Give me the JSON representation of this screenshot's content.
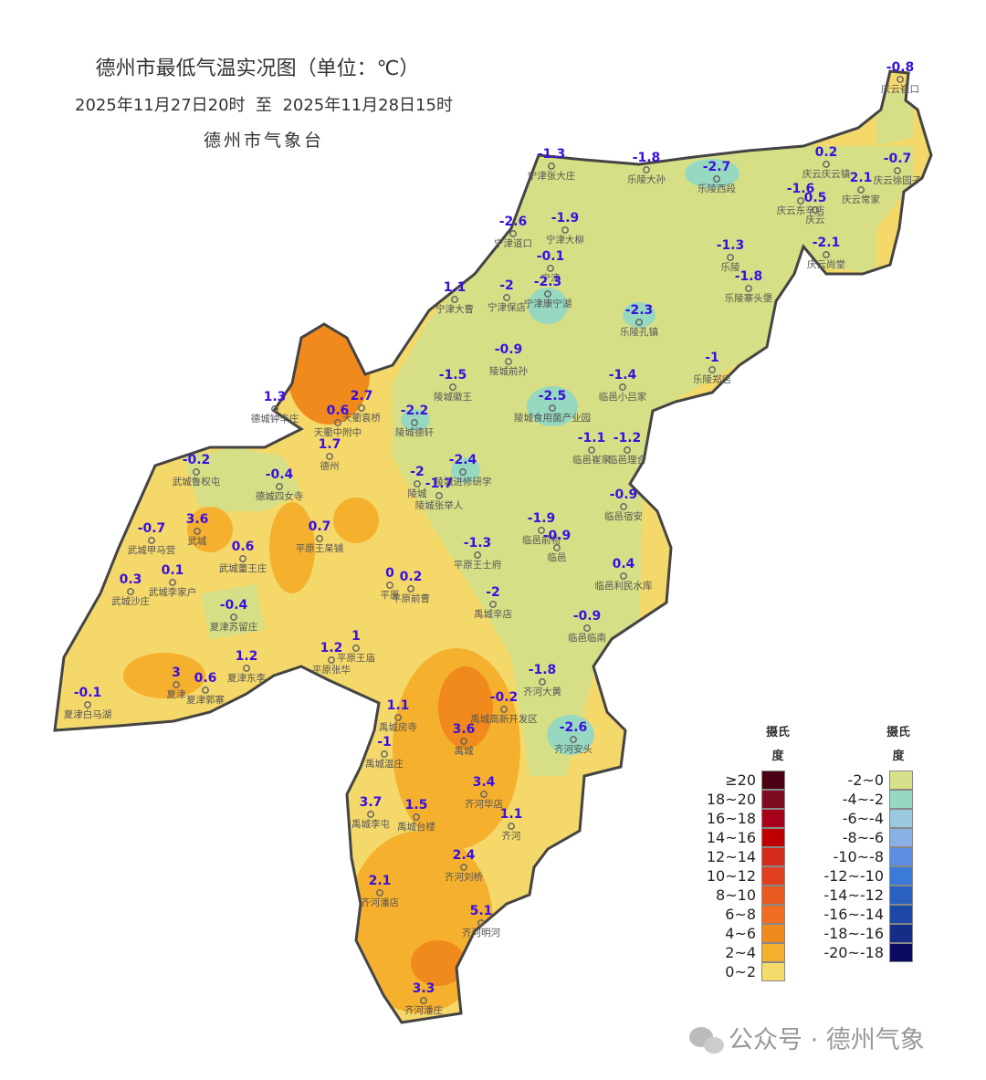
{
  "header": {
    "title": "德州市最低气温实况图（单位：℃）",
    "subtitle": "2025年11月27日20时  至  2025年11月28日15时",
    "agency": "德州市气象台"
  },
  "stations": [
    {
      "name": "庆云崔口",
      "value": -0.8
    },
    {
      "name": "宁津张大庄",
      "value": -1.3
    },
    {
      "name": "乐陵大孙",
      "value": -1.8
    },
    {
      "name": "乐陵西段",
      "value": -2.7
    },
    {
      "name": "庆云庆云镇",
      "value": 0.2
    },
    {
      "name": "庆云徐园子",
      "value": -0.7
    },
    {
      "name": "庆云常家",
      "value": 2.1
    },
    {
      "name": "庆云东辛店",
      "value": -1.6
    },
    {
      "name": "庆云",
      "value": 0.5
    },
    {
      "name": "庆云尚堂",
      "value": -2.1
    },
    {
      "name": "宁津道口",
      "value": -2.6
    },
    {
      "name": "宁津大柳",
      "value": -1.9
    },
    {
      "name": "宁津",
      "value": -0.1
    },
    {
      "name": "乐陵",
      "value": -1.3
    },
    {
      "name": "乐陵寨头堡",
      "value": -1.8
    },
    {
      "name": "宁津大曹",
      "value": 1.1
    },
    {
      "name": "宁津保店",
      "value": -2
    },
    {
      "name": "宁津康宁湖",
      "value": -2.3
    },
    {
      "name": "乐陵孔镇",
      "value": -2.3
    },
    {
      "name": "陵城前孙",
      "value": -0.9
    },
    {
      "name": "乐陵郑店",
      "value": -1
    },
    {
      "name": "陵城徽王",
      "value": -1.5
    },
    {
      "name": "临邑小吕家",
      "value": -1.4
    },
    {
      "name": "德城钟辛庄",
      "value": 1.3
    },
    {
      "name": "天衢袁桥",
      "value": 2.7
    },
    {
      "name": "天衢中附中",
      "value": 0.6
    },
    {
      "name": "陵城德轩",
      "value": -2.2
    },
    {
      "name": "陵城食用菌产业园",
      "value": -2.5
    },
    {
      "name": "德州",
      "value": 1.7
    },
    {
      "name": "临邑崔家",
      "value": -1.1
    },
    {
      "name": "临邑理合",
      "value": -1.2
    },
    {
      "name": "武城鲁权屯",
      "value": -0.2
    },
    {
      "name": "德城四女寺",
      "value": -0.4
    },
    {
      "name": "陵城进修研学",
      "value": -2.4
    },
    {
      "name": "陵城",
      "value": -2
    },
    {
      "name": "陵城张举人",
      "value": -1.7
    },
    {
      "name": "临邑宿安",
      "value": -0.9
    },
    {
      "name": "武城甲马营",
      "value": -0.7
    },
    {
      "name": "武城",
      "value": 3.6
    },
    {
      "name": "平原王杲铺",
      "value": 0.7
    },
    {
      "name": "临邑前物",
      "value": -1.9
    },
    {
      "name": "临邑",
      "value": -0.9
    },
    {
      "name": "武城董王庄",
      "value": 0.6
    },
    {
      "name": "平原王士府",
      "value": -1.3
    },
    {
      "name": "临邑利民水库",
      "value": 0.4
    },
    {
      "name": "武城沙庄",
      "value": 0.3
    },
    {
      "name": "武城李家户",
      "value": 0.1
    },
    {
      "name": "平原",
      "value": 0
    },
    {
      "name": "平原前曹",
      "value": 0.2
    },
    {
      "name": "禹城辛店",
      "value": -2
    },
    {
      "name": "夏津苏留庄",
      "value": -0.4
    },
    {
      "name": "临邑临南",
      "value": -0.9
    },
    {
      "name": "平原王庙",
      "value": 1
    },
    {
      "name": "平原张华",
      "value": 1.2
    },
    {
      "name": "夏津东李",
      "value": 1.2
    },
    {
      "name": "齐河大黄",
      "value": -1.8
    },
    {
      "name": "夏津",
      "value": 3
    },
    {
      "name": "夏津郭寨",
      "value": 0.6
    },
    {
      "name": "禹城高新开发区",
      "value": -0.2
    },
    {
      "name": "夏津白马湖",
      "value": -0.1
    },
    {
      "name": "禹城房寺",
      "value": 1.1
    },
    {
      "name": "禹城",
      "value": 3.6
    },
    {
      "name": "齐河安头",
      "value": -2.6
    },
    {
      "name": "禹城温庄",
      "value": -1
    },
    {
      "name": "齐河华店",
      "value": 3.4
    },
    {
      "name": "禹城李屯",
      "value": 3.7
    },
    {
      "name": "禹城台楼",
      "value": 1.5
    },
    {
      "name": "齐河",
      "value": 1.1
    },
    {
      "name": "齐河刘桥",
      "value": 2.4
    },
    {
      "name": "齐河潘店",
      "value": 2.1
    },
    {
      "name": "齐河明河",
      "value": 5.1
    },
    {
      "name": "齐河潘庄",
      "value": 3.3
    }
  ],
  "legend": {
    "warm": {
      "title": "摄氏度",
      "items": [
        {
          "label": "≥20",
          "color": "#4a0012"
        },
        {
          "label": "18~20",
          "color": "#7d0a1e"
        },
        {
          "label": "16~18",
          "color": "#a8001a"
        },
        {
          "label": "14~16",
          "color": "#c00000"
        },
        {
          "label": "12~14",
          "color": "#d42a1a"
        },
        {
          "label": "10~12",
          "color": "#e04020"
        },
        {
          "label": "8~10",
          "color": "#e85a20"
        },
        {
          "label": "6~8",
          "color": "#ef6e22"
        },
        {
          "label": "4~6",
          "color": "#f08a1c"
        },
        {
          "label": "2~4",
          "color": "#f5b02e"
        },
        {
          "label": "0~2",
          "color": "#f5dc6a"
        }
      ]
    },
    "cold": {
      "title": "摄氏度",
      "items": [
        {
          "label": "-2~0",
          "color": "#d8e08a"
        },
        {
          "label": "-4~-2",
          "color": "#96d8c0"
        },
        {
          "label": "-6~-4",
          "color": "#9ac8e0"
        },
        {
          "label": "-8~-6",
          "color": "#8ab0e6"
        },
        {
          "label": "-10~-8",
          "color": "#5b8ee0"
        },
        {
          "label": "-12~-10",
          "color": "#3a7ad8"
        },
        {
          "label": "-14~-12",
          "color": "#2a60c0"
        },
        {
          "label": "-16~-14",
          "color": "#1e48a8"
        },
        {
          "label": "-18~-16",
          "color": "#142e88"
        },
        {
          "label": "-20~-18",
          "color": "#0a0a60"
        }
      ]
    }
  },
  "watermark": "公众号 · 德州气象"
}
